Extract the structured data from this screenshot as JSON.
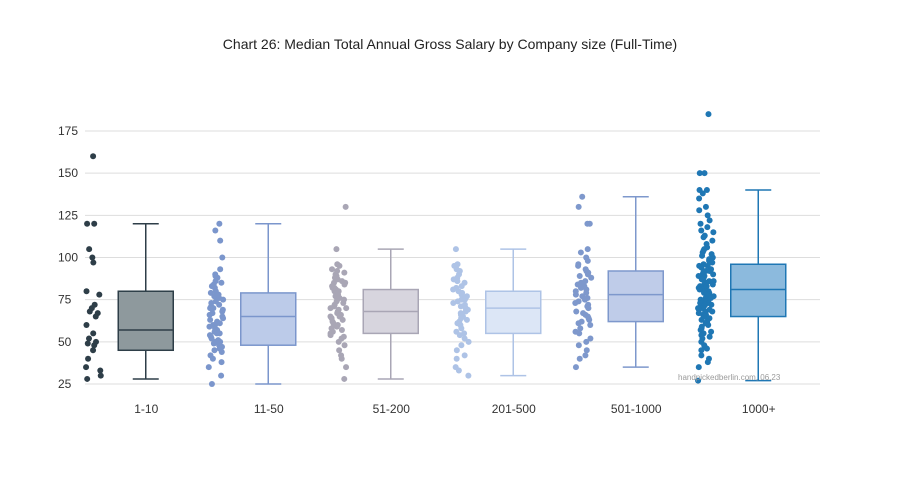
{
  "chart_data": {
    "type": "box",
    "title": "Chart 26: Median Total Annual Gross Salary by Company size (Full-Time)",
    "xlabel": "",
    "ylabel": "",
    "ylim": [
      25,
      185
    ],
    "yticks": [
      25,
      50,
      75,
      100,
      125,
      150,
      175
    ],
    "grid": true,
    "legend": "none",
    "source_note": "handpickedberlin.com, 06.23",
    "categories": [
      {
        "label": "1-10",
        "color": "#2e3e48",
        "fill": "#8e999d",
        "min": 28,
        "q1": 45,
        "median": 57,
        "q3": 80,
        "max": 120,
        "points": [
          160,
          120,
          120,
          105,
          100,
          97,
          80,
          78,
          72,
          70,
          68,
          67,
          65,
          60,
          55,
          52,
          50,
          49,
          48,
          45,
          40,
          35,
          33,
          30,
          28
        ]
      },
      {
        "label": "11-50",
        "color": "#7b96cc",
        "fill": "#bccbe9",
        "min": 25,
        "q1": 48,
        "median": 65,
        "q3": 79,
        "max": 120,
        "points": [
          120,
          116,
          110,
          100,
          93,
          90,
          89,
          88,
          86,
          85,
          84,
          83,
          82,
          80,
          79,
          78,
          77,
          76,
          75,
          74,
          73,
          72,
          71,
          70,
          70,
          69,
          68,
          67,
          66,
          65,
          64,
          63,
          62,
          61,
          60,
          60,
          59,
          58,
          57,
          56,
          55,
          55,
          54,
          53,
          52,
          51,
          50,
          50,
          49,
          48,
          47,
          46,
          45,
          44,
          42,
          40,
          38,
          35,
          30,
          25
        ]
      },
      {
        "label": "51-200",
        "color": "#a9a6b5",
        "fill": "#d7d5de",
        "min": 28,
        "q1": 55,
        "median": 68,
        "q3": 81,
        "max": 105,
        "points": [
          130,
          105,
          96,
          95,
          93,
          92,
          91,
          90,
          89,
          88,
          87,
          86,
          85,
          85,
          84,
          83,
          82,
          82,
          81,
          80,
          80,
          79,
          78,
          77,
          76,
          75,
          75,
          74,
          73,
          72,
          71,
          70,
          70,
          69,
          68,
          67,
          66,
          65,
          65,
          64,
          63,
          62,
          61,
          60,
          60,
          59,
          58,
          57,
          56,
          55,
          54,
          53,
          52,
          50,
          48,
          45,
          42,
          40,
          35,
          28
        ]
      },
      {
        "label": "201-500",
        "color": "#aec3e6",
        "fill": "#dce6f6",
        "min": 30,
        "q1": 55,
        "median": 70,
        "q3": 80,
        "max": 105,
        "points": [
          105,
          96,
          95,
          93,
          92,
          90,
          88,
          87,
          86,
          85,
          83,
          82,
          81,
          80,
          79,
          78,
          77,
          76,
          75,
          75,
          74,
          73,
          72,
          71,
          70,
          69,
          68,
          67,
          66,
          65,
          64,
          63,
          62,
          61,
          60,
          58,
          56,
          55,
          54,
          52,
          50,
          48,
          45,
          42,
          40,
          35,
          33,
          30
        ]
      },
      {
        "label": "501-1000",
        "color": "#7e98cc",
        "fill": "#bfcce9",
        "min": 35,
        "q1": 62,
        "median": 78,
        "q3": 92,
        "max": 136,
        "points": [
          136,
          130,
          120,
          120,
          105,
          103,
          100,
          98,
          96,
          95,
          93,
          92,
          91,
          90,
          89,
          88,
          86,
          85,
          84,
          83,
          82,
          81,
          80,
          79,
          78,
          77,
          76,
          75,
          74,
          73,
          72,
          71,
          70,
          68,
          67,
          66,
          65,
          64,
          63,
          62,
          61,
          60,
          58,
          56,
          55,
          52,
          50,
          48,
          45,
          42,
          40,
          35
        ]
      },
      {
        "label": "1000+",
        "color": "#1f77b4",
        "fill": "#8cbadd",
        "min": 27,
        "q1": 65,
        "median": 81,
        "q3": 96,
        "max": 140,
        "points": [
          185,
          150,
          150,
          140,
          140,
          138,
          135,
          130,
          128,
          125,
          122,
          120,
          118,
          116,
          115,
          113,
          112,
          110,
          108,
          106,
          105,
          104,
          103,
          102,
          101,
          100,
          99,
          98,
          97,
          96,
          95,
          95,
          94,
          93,
          92,
          92,
          91,
          90,
          90,
          89,
          89,
          88,
          88,
          87,
          87,
          86,
          86,
          85,
          85,
          84,
          84,
          83,
          83,
          82,
          82,
          81,
          81,
          80,
          80,
          79,
          79,
          78,
          78,
          77,
          77,
          76,
          76,
          75,
          75,
          74,
          74,
          73,
          73,
          72,
          72,
          71,
          71,
          70,
          70,
          69,
          69,
          68,
          68,
          67,
          67,
          66,
          66,
          65,
          65,
          64,
          63,
          62,
          61,
          60,
          59,
          58,
          57,
          56,
          55,
          54,
          53,
          52,
          50,
          48,
          47,
          46,
          45,
          42,
          40,
          38,
          35,
          27
        ]
      }
    ]
  }
}
